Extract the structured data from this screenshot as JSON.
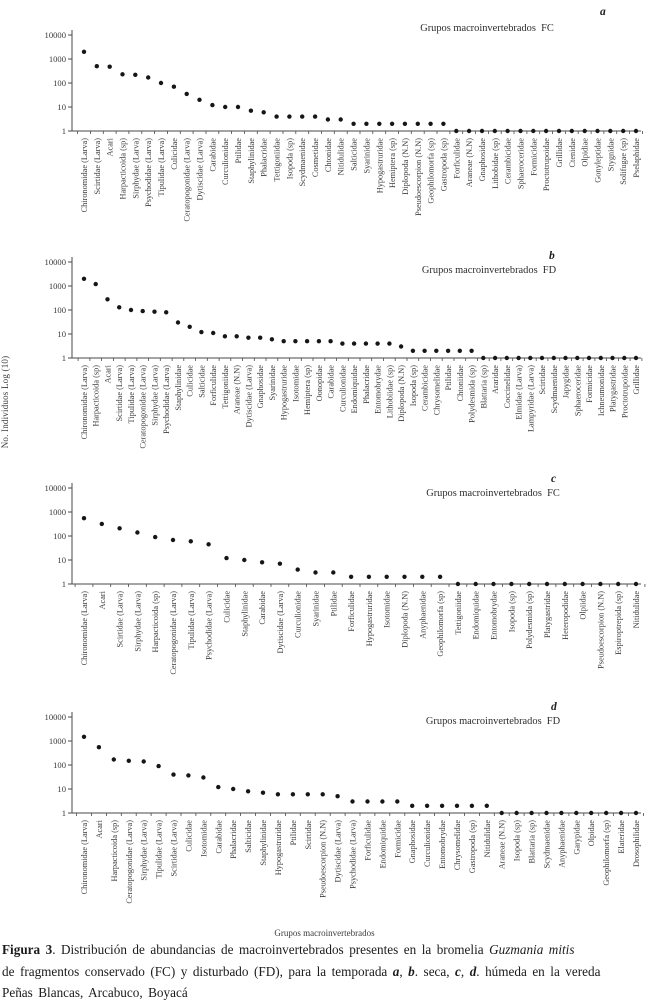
{
  "figure": {
    "y_axis_label": "No. Individuos Log (10)",
    "x_axis_label": "Grupos macroinvertebrados"
  },
  "caption": {
    "figure_label": "Figura 3",
    "seg1": ". Distribución de abundancias de macroinvertebrados presentes en la bromelia ",
    "species": "Guzmania mitis",
    "seg2": "de fragmentos conservado (FC) y disturbado (FD), para la temporada ",
    "letter_a": "a",
    "sep1": ", ",
    "letter_b": "b",
    "seg3": ". seca, ",
    "letter_c": "c",
    "sep2": ", ",
    "letter_d": "d",
    "seg4": ". húmeda en la vereda",
    "seg5": "Peñas Blancas, Arcabuco, Boyacá"
  },
  "chart_data": [
    {
      "type": "scatter",
      "panel_letter": "a",
      "title": "Grupos macroinvertebrados  FC",
      "ylabel": "No. Individuos Log (10)",
      "yscale": "log",
      "ylim": [
        1,
        10000
      ],
      "yticks": [
        "1",
        "10",
        "100",
        "1000",
        "10000"
      ],
      "grid": false,
      "categories": [
        "Chironomidae (Larva)",
        "Scirtidae (Larva)",
        "Acari",
        "Harpacticoida (sp)",
        "Sirphydae (Larva)",
        "Psychodidae (Larva)",
        "Tipulidae (Larva)",
        "Culicidae",
        "Ceratopogonidae (Larva)",
        "Dytiscidae (Larva)",
        "Carabidae",
        "Curculionidae",
        "Ptilidae",
        "Staphylinidae",
        "Phalacridae",
        "Tettigoniidae",
        "Isopoda (sp)",
        "Scydmaenidae",
        "Cosmetidae",
        "Chtonidae",
        "Nitidulidae",
        "Salticidae",
        "Syarinidae",
        "Hypogastruridae",
        "Hemiptera (sp)",
        "Diplopoda (N.N)",
        "Pseudoescorpion (N.N)",
        "Geophilomorfa (sp)",
        "Gastropoda (sp)",
        "Forficulidae",
        "Araneae (N.N)",
        "Gnaphosidae",
        "Lithobidae (sp)",
        "Cerambicidae",
        "Sphaeroceridae",
        "Formicidae",
        "Proctotrupoidae",
        "Grillidae",
        "Ctenidae",
        "Olpidiae",
        "Gonyleptidae",
        "Stygnidae",
        "Solifugae (sp)",
        "Pselaphidae"
      ],
      "values": [
        2000,
        500,
        480,
        230,
        220,
        170,
        100,
        70,
        35,
        20,
        12,
        10,
        10,
        7,
        6,
        4,
        4,
        4,
        4,
        3,
        3,
        2,
        2,
        2,
        2,
        2,
        2,
        2,
        2,
        1,
        1,
        1,
        1,
        1,
        1,
        1,
        1,
        1,
        1,
        1,
        1,
        1,
        1,
        1
      ]
    },
    {
      "type": "scatter",
      "panel_letter": "b",
      "title": "Grupos macroinvertebrados  FD",
      "ylabel": "No. Individuos Log (10)",
      "yscale": "log",
      "ylim": [
        1,
        10000
      ],
      "yticks": [
        "1",
        "10",
        "100",
        "1000",
        "10000"
      ],
      "grid": false,
      "categories": [
        "Chironomidae (Larva)",
        "Harpacticoida (sp)",
        "Acari",
        "Scirtidae (Larva)",
        "Tipulidae (Larva)",
        "Ceratopogonidae (Larva)",
        "Sirphydae (Larva)",
        "Psychodidae (Larva)",
        "Staphylinidae",
        "Culicidae",
        "Salticidae",
        "Forficulidae",
        "Tettigoniidae",
        "Araneae (N.N)",
        "Dytiscidae (Larva)",
        "Gnaphosidae",
        "Syarinidae",
        "Hypogastruridae",
        "Isotomidae",
        "Hemiptera (sp)",
        "Oonopidae",
        "Carabidae",
        "Curculionidae",
        "Endomiquidae",
        "Phalacridae",
        "Entomobrydae",
        "Lithobiidae (sp)",
        "Diplopoda (N.N)",
        "Isopoda (sp)",
        "Cerambicidae",
        "Chrysomelidae",
        "Ptilidae",
        "Chtoniidae",
        "Polydesmida (sp)",
        "Blattaria (sp)",
        "Araridae",
        "Coccinelidae",
        "Elmidae (Larva)",
        "Lampyridae (Larva)",
        "Scirtidae",
        "Scydmaenidae",
        "Japygidae",
        "Sphaeroceridae",
        "Formicidae",
        "Ichneumonidae",
        "Platygastridae",
        "Proctotrupoidae",
        "Grillidae"
      ],
      "values": [
        2000,
        1200,
        280,
        130,
        100,
        90,
        85,
        80,
        30,
        20,
        12,
        11,
        8,
        8,
        7,
        7,
        6,
        5,
        5,
        5,
        5,
        5,
        4,
        4,
        4,
        4,
        4,
        3,
        2,
        2,
        2,
        2,
        2,
        2,
        1,
        1,
        1,
        1,
        1,
        1,
        1,
        1,
        1,
        1,
        1,
        1,
        1,
        1
      ]
    },
    {
      "type": "scatter",
      "panel_letter": "c",
      "title": "Grupos macroinvertebrados  FC",
      "ylabel": "No. Individuos Log (10)",
      "yscale": "log",
      "ylim": [
        1,
        10000
      ],
      "yticks": [
        "1",
        "10",
        "100",
        "1000",
        "10000"
      ],
      "grid": false,
      "categories": [
        "Chironomidae (Larva)",
        "Acari",
        "Scirtidae (Larva)",
        "Sirphydae (Larva)",
        "Harpacticoida (sp)",
        "Ceratopogonidae (Larva)",
        "Tipulidae (Larva)",
        "Psychodidae (Larva)",
        "Culicidae",
        "Staphylinidae",
        "Carabidae",
        "Dytiscidae (Larva)",
        "Curculionidae",
        "Syarinidae",
        "Ptilidae",
        "Forficulidae",
        "Hypogastruridae",
        "Isotomidae",
        "Diplopoda (N.N)",
        "Anyphaenidae",
        "Geophilomorfa (sp)",
        "Tettigoniidae",
        "Endomiquidae",
        "Entomobrydae",
        "Isopoda (sp)",
        "Polydesmida (sp)",
        "Platygastridae",
        "Heteropodidae",
        "Olpiidae",
        "Pseudoescorpion (N.N)",
        "Espiroptrepida (sp)",
        "Nitidulidae"
      ],
      "values": [
        550,
        320,
        210,
        140,
        90,
        68,
        60,
        45,
        12,
        10,
        8,
        7,
        4,
        3,
        3,
        2,
        2,
        2,
        2,
        2,
        2,
        1,
        1,
        1,
        1,
        1,
        1,
        1,
        1,
        1,
        1,
        1
      ]
    },
    {
      "type": "scatter",
      "panel_letter": "d",
      "title": "Grupos macroinvertebrados  FD",
      "ylabel": "No. Individuos Log (10)",
      "yscale": "log",
      "ylim": [
        1,
        10000
      ],
      "yticks": [
        "1",
        "10",
        "100",
        "1000",
        "10000"
      ],
      "grid": false,
      "categories": [
        "Chironomidae (Larva)",
        "Acari",
        "Harpacticoida (sp)",
        "Ceratopogonidae (Larva)",
        "Sirphydae (Larva)",
        "Tipulidae (Larva)",
        "Scirtidae (Larva)",
        "Culicidae",
        "Isotomidae",
        "Carabidae",
        "Phalacridae",
        "Salticidae",
        "Staphylinidae",
        "Hypogastruridae",
        "Ptilidae",
        "Scirtidae",
        "Pseudoescorpion (N.N)",
        "Dytiscidae (Larva)",
        "Psychodidae (Larva)",
        "Forficulidae",
        "Endomiquidae",
        "Formicidae",
        "Gnaphosidae",
        "Curculionidae",
        "Entomobrydae",
        "Chrysomelidae",
        "Gastropoda (sp)",
        "Nitidulidae",
        "Araneae (N.N)",
        "Isopoda (sp)",
        "Blattaria (sp)",
        "Scydmaenidae",
        "Anyphaenidae",
        "Garypidae",
        "Olpidae",
        "Geophilomorfa (sp)",
        "Elateridae",
        "Drosophilidae"
      ],
      "values": [
        1500,
        550,
        170,
        150,
        140,
        90,
        40,
        37,
        30,
        12,
        10,
        8,
        7,
        6,
        6,
        6,
        6,
        5,
        3,
        3,
        3,
        3,
        2,
        2,
        2,
        2,
        2,
        2,
        1,
        1,
        1,
        1,
        1,
        1,
        1,
        1,
        1,
        1
      ]
    }
  ]
}
